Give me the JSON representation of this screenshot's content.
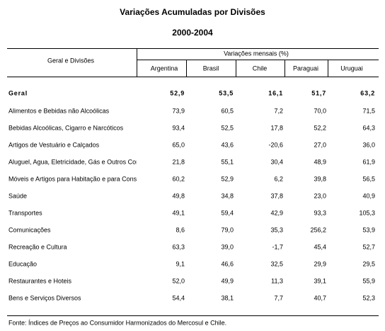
{
  "title": "Variações Acumuladas por Divisões",
  "subtitle": "2000-2004",
  "table": {
    "row_header": "Geral e Divisões",
    "group_header": "Variações mensais (%)",
    "columns": [
      "Argentina",
      "Brasil",
      "Chile",
      "Paraguai",
      "Uruguai"
    ],
    "rows": [
      [
        "Geral",
        "52,9",
        "53,5",
        "16,1",
        "51,7",
        "63,2"
      ],
      [
        "Alimentos e Bebidas não Alcoólicas",
        "73,9",
        "60,5",
        "7,2",
        "70,0",
        "71,5"
      ],
      [
        "Bebidas Alcoólicas, Cigarro e Narcóticos",
        "93,4",
        "52,5",
        "17,8",
        "52,2",
        "64,3"
      ],
      [
        "Artigos de Vestuário e Calçados",
        "65,0",
        "43,6",
        "-20,6",
        "27,0",
        "36,0"
      ],
      [
        "Aluguel, Agua, Eletricidade, Gás e Outros Combustíveis",
        "21,8",
        "55,1",
        "30,4",
        "48,9",
        "61,9"
      ],
      [
        "Móveis e Artigos para Habitação e para Conservação",
        "60,2",
        "52,9",
        "6,2",
        "39,8",
        "56,5"
      ],
      [
        "Saúde",
        "49,8",
        "34,8",
        "37,8",
        "23,0",
        "40,9"
      ],
      [
        "Transportes",
        "49,1",
        "59,4",
        "42,9",
        "93,3",
        "105,3"
      ],
      [
        "Comunicações",
        "8,6",
        "79,0",
        "35,3",
        "256,2",
        "53,9"
      ],
      [
        "Recreação e Cultura",
        "63,3",
        "39,0",
        "-1,7",
        "45,4",
        "52,7"
      ],
      [
        "Educação",
        "9,1",
        "46,6",
        "32,5",
        "29,9",
        "29,5"
      ],
      [
        "Restaurantes e Hoteis",
        "52,0",
        "49,9",
        "11,3",
        "39,1",
        "55,9"
      ],
      [
        "Bens e Serviços Diversos",
        "54,4",
        "38,1",
        "7,7",
        "40,7",
        "52,3"
      ]
    ]
  },
  "footnote": "Fonte: Índices de Preços ao Consumidor Harmonizados do  Mercosul e Chile."
}
